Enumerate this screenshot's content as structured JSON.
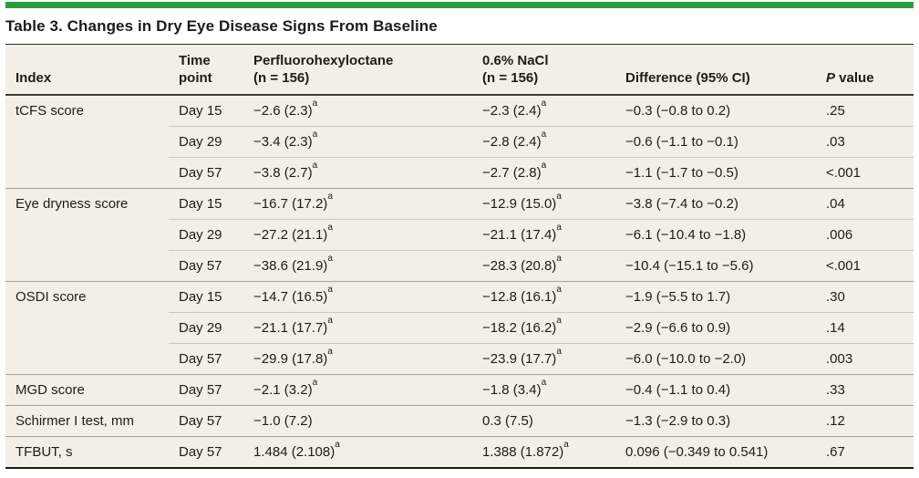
{
  "title": "Table 3. Changes in Dry Eye Disease Signs From Baseline",
  "colors": {
    "accent_green": "#2e9b3f",
    "table_background": "#f1efe6",
    "subrow_line": "#cbc9be",
    "group_line": "#a6a499",
    "text": "#1d1d1a"
  },
  "footnote_marker": "a",
  "table": {
    "headers": {
      "index": "Index",
      "time_line1": "Time",
      "time_line2": "point",
      "drug_line1": "Perfluorohexyloctane",
      "drug_line2": "(n = 156)",
      "nacl_line1": "0.6% NaCl",
      "nacl_line2": "(n = 156)",
      "difference": "Difference (95% CI)",
      "p_italic": "P",
      "p_rest": " value"
    },
    "groups": [
      {
        "index": "tCFS score",
        "rows": [
          {
            "time": "Day 15",
            "drug": "−2.6 (2.3)",
            "drug_sup": "a",
            "nacl": "−2.3 (2.4)",
            "nacl_sup": "a",
            "diff": "−0.3 (−0.8 to 0.2)",
            "p": ".25"
          },
          {
            "time": "Day 29",
            "drug": "−3.4 (2.3)",
            "drug_sup": "a",
            "nacl": "−2.8 (2.4)",
            "nacl_sup": "a",
            "diff": "−0.6 (−1.1 to −0.1)",
            "p": ".03"
          },
          {
            "time": "Day 57",
            "drug": "−3.8 (2.7)",
            "drug_sup": "a",
            "nacl": "−2.7 (2.8)",
            "nacl_sup": "a",
            "diff": "−1.1 (−1.7 to −0.5)",
            "p": "<.001"
          }
        ]
      },
      {
        "index": "Eye dryness score",
        "rows": [
          {
            "time": "Day 15",
            "drug": "−16.7 (17.2)",
            "drug_sup": "a",
            "nacl": "−12.9 (15.0)",
            "nacl_sup": "a",
            "diff": "−3.8 (−7.4 to −0.2)",
            "p": ".04"
          },
          {
            "time": "Day 29",
            "drug": "−27.2 (21.1)",
            "drug_sup": "a",
            "nacl": "−21.1 (17.4)",
            "nacl_sup": "a",
            "diff": "−6.1 (−10.4 to −1.8)",
            "p": ".006"
          },
          {
            "time": "Day 57",
            "drug": "−38.6 (21.9)",
            "drug_sup": "a",
            "nacl": "−28.3 (20.8)",
            "nacl_sup": "a",
            "diff": "−10.4 (−15.1 to −5.6)",
            "p": "<.001"
          }
        ]
      },
      {
        "index": "OSDI score",
        "rows": [
          {
            "time": "Day 15",
            "drug": "−14.7 (16.5)",
            "drug_sup": "a",
            "nacl": "−12.8 (16.1)",
            "nacl_sup": "a",
            "diff": "−1.9 (−5.5 to 1.7)",
            "p": ".30"
          },
          {
            "time": "Day 29",
            "drug": "−21.1 (17.7)",
            "drug_sup": "a",
            "nacl": "−18.2 (16.2)",
            "nacl_sup": "a",
            "diff": "−2.9 (−6.6 to 0.9)",
            "p": ".14"
          },
          {
            "time": "Day 57",
            "drug": "−29.9 (17.8)",
            "drug_sup": "a",
            "nacl": "−23.9 (17.7)",
            "nacl_sup": "a",
            "diff": "−6.0 (−10.0 to −2.0)",
            "p": ".003"
          }
        ]
      },
      {
        "index": "MGD score",
        "rows": [
          {
            "time": "Day 57",
            "drug": "−2.1 (3.2)",
            "drug_sup": "a",
            "nacl": "−1.8 (3.4)",
            "nacl_sup": "a",
            "diff": "−0.4 (−1.1 to 0.4)",
            "p": ".33"
          }
        ]
      },
      {
        "index": "Schirmer I test, mm",
        "rows": [
          {
            "time": "Day 57",
            "drug": "−1.0 (7.2)",
            "drug_sup": "",
            "nacl": "0.3 (7.5)",
            "nacl_sup": "",
            "diff": "−1.3 (−2.9 to 0.3)",
            "p": ".12"
          }
        ]
      },
      {
        "index": "TFBUT, s",
        "rows": [
          {
            "time": "Day 57",
            "drug": "1.484 (2.108)",
            "drug_sup": "a",
            "nacl": "1.388 (1.872)",
            "nacl_sup": "a",
            "diff": "0.096 (−0.349 to 0.541)",
            "p": ".67"
          }
        ]
      }
    ]
  }
}
